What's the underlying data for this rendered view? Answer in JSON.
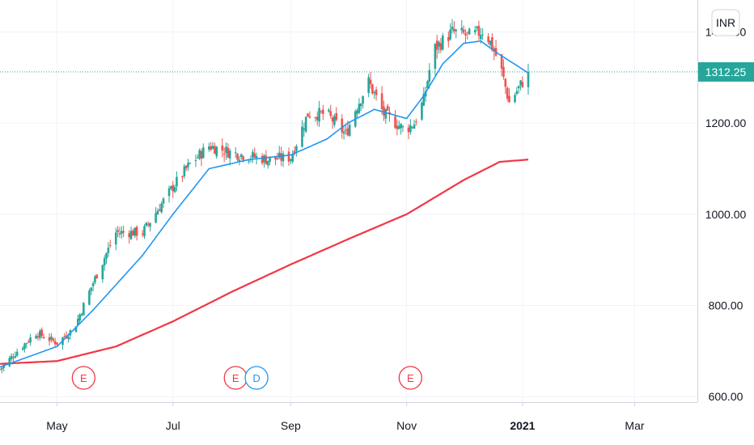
{
  "chart_data": {
    "type": "candlestick",
    "currency": "INR",
    "last_price": 1312.25,
    "last_price_label": "1312.25",
    "ylim": [
      588,
      1470
    ],
    "y_ticks": [
      {
        "value": 600,
        "label": "600.00"
      },
      {
        "value": 800,
        "label": "800.00"
      },
      {
        "value": 1000,
        "label": "1000.00"
      },
      {
        "value": 1200,
        "label": "1200.00"
      },
      {
        "value": 1400,
        "label": "1400.00"
      }
    ],
    "x_range": [
      "2020-04-01",
      "2021-04-03"
    ],
    "x_ticks": [
      {
        "date": "2020-05-01",
        "label": "May",
        "bold": false
      },
      {
        "date": "2020-07-01",
        "label": "Jul",
        "bold": false
      },
      {
        "date": "2020-09-01",
        "label": "Sep",
        "bold": false
      },
      {
        "date": "2020-11-01",
        "label": "Nov",
        "bold": false
      },
      {
        "date": "2021-01-01",
        "label": "2021",
        "bold": true
      },
      {
        "date": "2021-03-01",
        "label": "Mar",
        "bold": false
      }
    ],
    "events": [
      {
        "date": "2020-05-15",
        "label": "E",
        "color": "#f23645"
      },
      {
        "date": "2020-08-03",
        "label": "E",
        "color": "#f23645"
      },
      {
        "date": "2020-08-14",
        "label": "D",
        "color": "#2196f3"
      },
      {
        "date": "2020-11-03",
        "label": "E",
        "color": "#f23645"
      }
    ],
    "close_keypoints": [
      [
        "2020-04-01",
        660
      ],
      [
        "2020-04-10",
        700
      ],
      [
        "2020-04-20",
        740
      ],
      [
        "2020-05-01",
        718
      ],
      [
        "2020-05-10",
        750
      ],
      [
        "2020-05-20",
        850
      ],
      [
        "2020-06-01",
        960
      ],
      [
        "2020-06-15",
        960
      ],
      [
        "2020-07-01",
        1060
      ],
      [
        "2020-07-10",
        1110
      ],
      [
        "2020-07-20",
        1150
      ],
      [
        "2020-08-01",
        1135
      ],
      [
        "2020-08-20",
        1120
      ],
      [
        "2020-09-01",
        1125
      ],
      [
        "2020-09-10",
        1220
      ],
      [
        "2020-09-20",
        1220
      ],
      [
        "2020-09-30",
        1175
      ],
      [
        "2020-10-05",
        1230
      ],
      [
        "2020-10-12",
        1290
      ],
      [
        "2020-10-20",
        1220
      ],
      [
        "2020-10-31",
        1185
      ],
      [
        "2020-11-05",
        1200
      ],
      [
        "2020-11-10",
        1250
      ],
      [
        "2020-11-15",
        1360
      ],
      [
        "2020-11-25",
        1400
      ],
      [
        "2020-12-05",
        1390
      ],
      [
        "2020-12-12",
        1405
      ],
      [
        "2020-12-20",
        1330
      ],
      [
        "2020-12-25",
        1245
      ],
      [
        "2021-01-01",
        1290
      ],
      [
        "2021-01-04",
        1312
      ]
    ],
    "ma_short_keypoints": [
      [
        "2020-04-01",
        665
      ],
      [
        "2020-05-01",
        710
      ],
      [
        "2020-05-20",
        790
      ],
      [
        "2020-06-15",
        910
      ],
      [
        "2020-07-01",
        1000
      ],
      [
        "2020-07-20",
        1100
      ],
      [
        "2020-08-10",
        1120
      ],
      [
        "2020-09-01",
        1130
      ],
      [
        "2020-09-20",
        1165
      ],
      [
        "2020-10-01",
        1200
      ],
      [
        "2020-10-15",
        1230
      ],
      [
        "2020-11-01",
        1210
      ],
      [
        "2020-11-10",
        1260
      ],
      [
        "2020-11-20",
        1330
      ],
      [
        "2020-12-01",
        1375
      ],
      [
        "2020-12-10",
        1380
      ],
      [
        "2020-12-20",
        1350
      ],
      [
        "2021-01-01",
        1318
      ],
      [
        "2021-01-04",
        1310
      ]
    ],
    "ma_long_keypoints": [
      [
        "2020-04-01",
        672
      ],
      [
        "2020-05-01",
        678
      ],
      [
        "2020-06-01",
        710
      ],
      [
        "2020-07-01",
        765
      ],
      [
        "2020-08-01",
        830
      ],
      [
        "2020-09-01",
        890
      ],
      [
        "2020-10-01",
        945
      ],
      [
        "2020-11-01",
        1000
      ],
      [
        "2020-12-01",
        1075
      ],
      [
        "2020-12-20",
        1115
      ],
      [
        "2021-01-04",
        1120
      ]
    ],
    "colors": {
      "up": "#26a69a",
      "down": "#ef5350",
      "ma_short": "#2196f3",
      "ma_long": "#f23645",
      "price_line": "#26a69a",
      "label_bg": "#26a69a",
      "grid": "#f0f3fa",
      "axis": "#cfd3dc"
    }
  }
}
